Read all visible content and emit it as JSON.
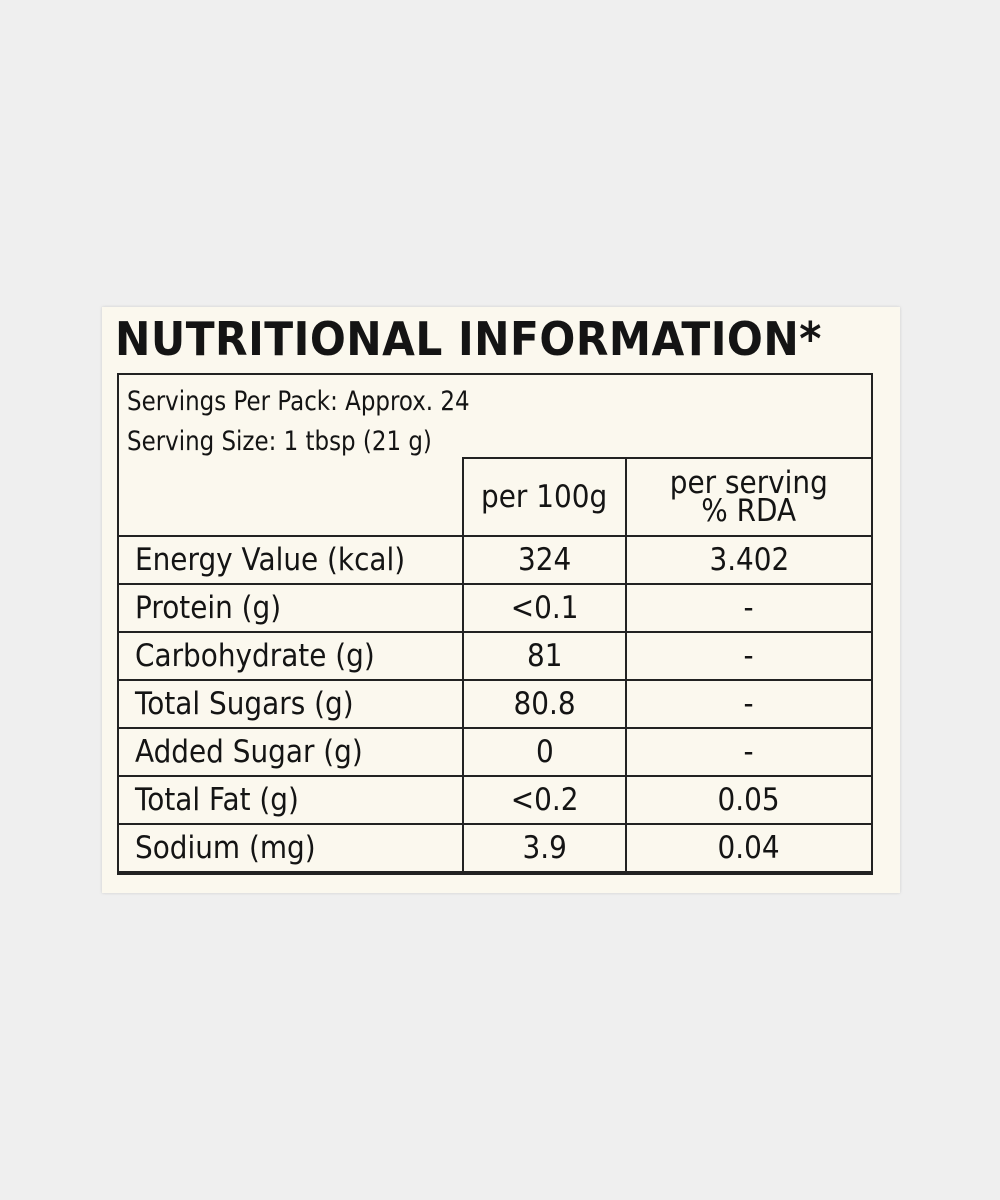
{
  "label": {
    "title": "NUTRITIONAL INFORMATION*",
    "servings": [
      "Servings Per Pack: Approx. 24",
      "Serving Size: 1 tbsp (21 g)"
    ],
    "columns": [
      [
        "per 100g"
      ],
      [
        "per serving",
        "% RDA"
      ]
    ],
    "rows": [
      [
        "Energy Value (kcal)",
        "324",
        "3.402"
      ],
      [
        "Protein (g)",
        "<0.1",
        "-"
      ],
      [
        "Carbohydrate (g)",
        "81",
        "-"
      ],
      [
        "Total Sugars (g)",
        "80.8",
        "-"
      ],
      [
        "Added Sugar (g)",
        "0",
        "-"
      ],
      [
        "Total Fat (g)",
        "<0.2",
        "0.05"
      ],
      [
        "Sodium (mg)",
        "3.9",
        "0.04"
      ]
    ]
  }
}
